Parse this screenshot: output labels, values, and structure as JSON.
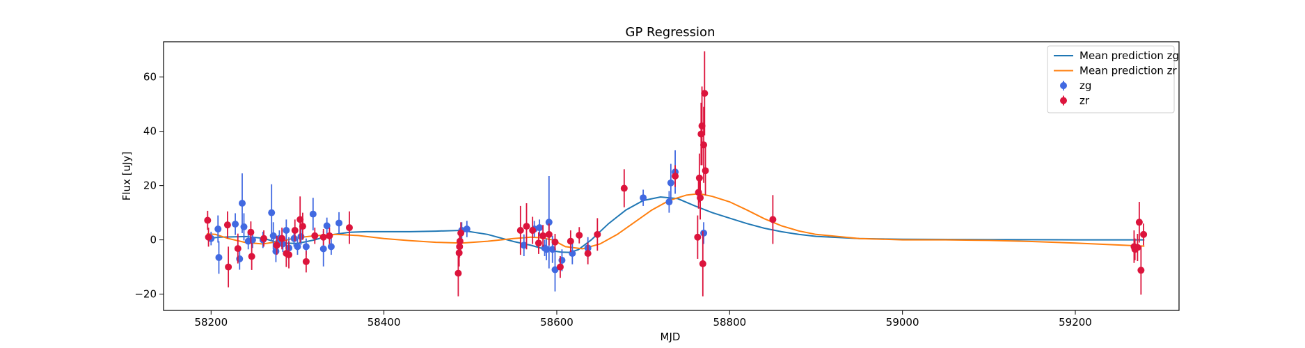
{
  "chart_data": {
    "type": "scatter",
    "title": "GP Regression",
    "xlabel": "MJD",
    "ylabel": "Flux [uJy]",
    "xlim": [
      58145,
      59320
    ],
    "ylim": [
      -26,
      73
    ],
    "xticks": [
      58200,
      58400,
      58600,
      58800,
      59000,
      59200
    ],
    "yticks": [
      -20,
      0,
      20,
      40,
      60
    ],
    "grid": false,
    "legend_position": "top-right",
    "colors": {
      "zg_line": "#1f77b4",
      "zr_line": "#ff7f0e",
      "zg_points": "#4169e1",
      "zr_points": "#dc143c"
    },
    "lines": [
      {
        "name": "Mean prediction zg",
        "x": [
          58195,
          58210,
          58240,
          58260,
          58280,
          58300,
          58320,
          58340,
          58360,
          58380,
          58400,
          58430,
          58460,
          58490,
          58520,
          58550,
          58570,
          58590,
          58605,
          58615,
          58625,
          58640,
          58660,
          58680,
          58700,
          58720,
          58740,
          58760,
          58780,
          58800,
          58820,
          58840,
          58860,
          58880,
          58900,
          58950,
          59000,
          59100,
          59200,
          59280
        ],
        "y": [
          0.5,
          1.0,
          1.2,
          0.6,
          -1.2,
          -1.3,
          0.0,
          1.9,
          2.8,
          3.0,
          3.0,
          3.0,
          3.2,
          3.5,
          2.0,
          -0.6,
          -2.0,
          -3.8,
          -4.5,
          -4.6,
          -3.6,
          0.0,
          6.0,
          11.0,
          14.5,
          15.8,
          15.2,
          12.5,
          10.0,
          8.0,
          6.0,
          4.3,
          3.0,
          2.0,
          1.3,
          0.5,
          0.2,
          0.1,
          0.0,
          0.0
        ]
      },
      {
        "name": "Mean prediction zr",
        "x": [
          58195,
          58205,
          58220,
          58240,
          58260,
          58280,
          58300,
          58320,
          58345,
          58370,
          58400,
          58430,
          58460,
          58490,
          58520,
          58550,
          58570,
          58580,
          58595,
          58610,
          58630,
          58650,
          58670,
          58690,
          58710,
          58730,
          58750,
          58765,
          58780,
          58800,
          58820,
          58840,
          58860,
          58880,
          58900,
          58950,
          59000,
          59050,
          59100,
          59150,
          59200,
          59280
        ],
        "y": [
          2.2,
          2.0,
          0.5,
          -1.0,
          -1.5,
          -0.5,
          0.8,
          1.5,
          2.0,
          1.6,
          0.5,
          -0.3,
          -0.9,
          -1.2,
          -0.5,
          0.5,
          1.0,
          0.8,
          0.0,
          -2.5,
          -3.3,
          -1.5,
          2.0,
          6.5,
          11.0,
          14.5,
          16.5,
          17.0,
          16.0,
          14.0,
          11.0,
          7.8,
          5.2,
          3.3,
          2.0,
          0.5,
          0.0,
          0.0,
          -0.2,
          -0.6,
          -1.2,
          -2.3
        ]
      }
    ],
    "series": [
      {
        "name": "zg",
        "points": [
          [
            58200,
            0.5,
            2.5
          ],
          [
            58208,
            4,
            5
          ],
          [
            58209,
            -6.5,
            6
          ],
          [
            58228,
            5.8,
            4
          ],
          [
            58233,
            -7,
            4
          ],
          [
            58236,
            13.5,
            11
          ],
          [
            58238,
            4.8,
            5
          ],
          [
            58243,
            -0.5,
            3
          ],
          [
            58248,
            0,
            3
          ],
          [
            58260,
            0,
            3
          ],
          [
            58270,
            10,
            10.5
          ],
          [
            58272,
            1.5,
            5
          ],
          [
            58275,
            -4.2,
            4
          ],
          [
            58279,
            0.5,
            3
          ],
          [
            58283,
            -1.5,
            3
          ],
          [
            58287,
            3.5,
            4
          ],
          [
            58290,
            -3,
            4
          ],
          [
            58296,
            0.5,
            3
          ],
          [
            58300,
            -2.5,
            3
          ],
          [
            58304,
            1.2,
            3
          ],
          [
            58310,
            -2.5,
            3
          ],
          [
            58318,
            9.5,
            6
          ],
          [
            58330,
            -3.3,
            6.5
          ],
          [
            58334,
            5.2,
            3
          ],
          [
            58339,
            -2.5,
            3
          ],
          [
            58348,
            6.2,
            4
          ],
          [
            58490,
            3.5,
            3
          ],
          [
            58496,
            4,
            3
          ],
          [
            58562,
            -2,
            4
          ],
          [
            58574,
            4,
            3
          ],
          [
            58580,
            4.5,
            3
          ],
          [
            58586,
            -3,
            3
          ],
          [
            58588,
            -3.5,
            4
          ],
          [
            58591,
            6.5,
            17
          ],
          [
            58595,
            -3.5,
            5
          ],
          [
            58598,
            -11,
            8
          ],
          [
            58606,
            -7.5,
            4
          ],
          [
            58618,
            -5,
            4
          ],
          [
            58636,
            -3,
            4
          ],
          [
            58700,
            15.5,
            3
          ],
          [
            58730,
            14,
            4
          ],
          [
            58732,
            21,
            7
          ],
          [
            58737,
            25,
            8
          ],
          [
            58770,
            2.5,
            4
          ]
        ]
      },
      {
        "name": "zr",
        "points": [
          [
            58196,
            7.2,
            3.5
          ],
          [
            58197,
            1.0,
            3.5
          ],
          [
            58219,
            5.5,
            5
          ],
          [
            58220,
            -10,
            7.5
          ],
          [
            58231,
            -3.2,
            5.5
          ],
          [
            58246,
            2.8,
            4
          ],
          [
            58247,
            -6.1,
            5
          ],
          [
            58261,
            0.5,
            3
          ],
          [
            58276,
            -2,
            3.5
          ],
          [
            58282,
            0.5,
            4
          ],
          [
            58287,
            -5,
            5
          ],
          [
            58290,
            -5.5,
            5
          ],
          [
            58297,
            3.5,
            4
          ],
          [
            58303,
            7.5,
            8.5
          ],
          [
            58306,
            5,
            5
          ],
          [
            58310,
            -8,
            4
          ],
          [
            58320,
            1.5,
            3
          ],
          [
            58330,
            1,
            3
          ],
          [
            58337,
            1.5,
            3
          ],
          [
            58360,
            4.5,
            6
          ],
          [
            58486,
            -12.3,
            8.5
          ],
          [
            58487,
            -4.8,
            5
          ],
          [
            58487.5,
            -2.5,
            4
          ],
          [
            58488,
            -0.5,
            4
          ],
          [
            58489,
            2.5,
            4
          ],
          [
            58558,
            3.5,
            9
          ],
          [
            58565,
            5,
            8.5
          ],
          [
            58572,
            3.5,
            5
          ],
          [
            58579,
            -1.2,
            4
          ],
          [
            58584,
            1.5,
            4
          ],
          [
            58591,
            2,
            4
          ],
          [
            58598,
            -0.8,
            3
          ],
          [
            58604,
            -10,
            4
          ],
          [
            58616,
            -0.5,
            4
          ],
          [
            58626,
            1.7,
            3
          ],
          [
            58636,
            -5,
            4
          ],
          [
            58647,
            2,
            6
          ],
          [
            58678,
            19,
            7
          ],
          [
            58737,
            23.5,
            4
          ],
          [
            58763,
            1,
            8
          ],
          [
            58764,
            17.5,
            6
          ],
          [
            58765,
            22.8,
            9
          ],
          [
            58766,
            15.5,
            8
          ],
          [
            58767,
            39,
            11.5
          ],
          [
            58768,
            42,
            14.5
          ],
          [
            58769,
            -8.8,
            12
          ],
          [
            58770,
            35,
            14
          ],
          [
            58771,
            54,
            15.5
          ],
          [
            58772,
            25.5,
            9
          ],
          [
            58850,
            7.5,
            9
          ],
          [
            59268,
            -2.5,
            6
          ],
          [
            59269,
            -3.5,
            4
          ],
          [
            59272,
            -2.8,
            5
          ],
          [
            59274,
            6.5,
            7.5
          ],
          [
            59276,
            -11.2,
            9
          ],
          [
            59279,
            2,
            4
          ]
        ]
      }
    ],
    "legend": [
      {
        "label": "Mean prediction zg",
        "kind": "line",
        "color_key": "zg_line"
      },
      {
        "label": "Mean prediction zr",
        "kind": "line",
        "color_key": "zr_line"
      },
      {
        "label": "zg",
        "kind": "errorbar",
        "color_key": "zg_points"
      },
      {
        "label": "zr",
        "kind": "errorbar",
        "color_key": "zr_points"
      }
    ]
  }
}
